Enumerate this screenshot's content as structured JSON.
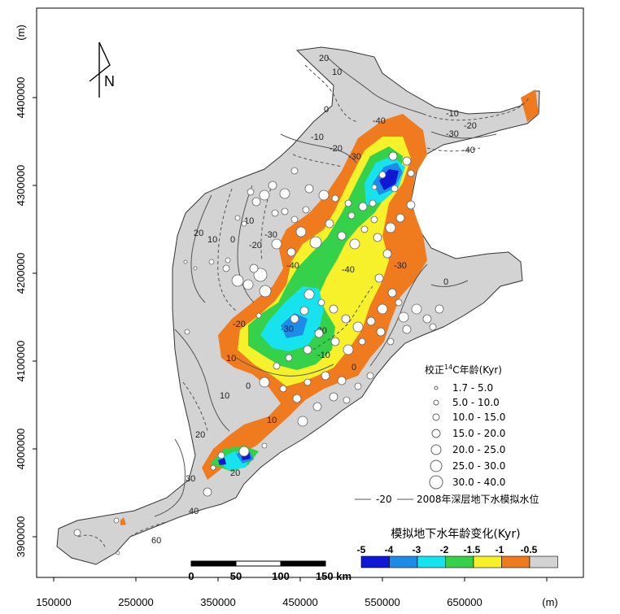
{
  "colors": {
    "background_region": "#d6d6d6",
    "orange": "#f07a1e",
    "yellow": "#f6f12a",
    "green": "#35d14a",
    "cyan": "#17e3ee",
    "mid_blue": "#1d8be8",
    "dark_blue": "#1018d6",
    "gray": "#d3d3d3",
    "frame": "#000000",
    "contour": "#555555"
  },
  "axes": {
    "x_unit": "(m)",
    "y_unit": "(m)",
    "x_ticks": [
      "150000",
      "250000",
      "350000",
      "450000",
      "550000",
      "650000"
    ],
    "y_ticks": [
      "4400000",
      "4300000",
      "4200000",
      "4100000",
      "4000000",
      "3900000"
    ]
  },
  "north_arrow": {
    "label": "N",
    "icon": "north-arrow-icon"
  },
  "contour_labels": [
    "20",
    "10",
    "0",
    "-10",
    "-20",
    "-30",
    "-40",
    "40",
    "30",
    "60"
  ],
  "well_legend": {
    "title_prefix": "校正",
    "title_sup": "14",
    "title_suffix": "C年龄(Kyr)",
    "classes": [
      "1.7 - 5.0",
      "5.0 - 10.0",
      "10.0 - 15.0",
      "15.0 - 20.0",
      "20.0 - 25.0",
      "25.0 - 30.0",
      "30.0 - 40.0"
    ],
    "contour_sample": "-20",
    "contour_text": "2008年深层地下水模拟水位"
  },
  "colorbar": {
    "title": "模拟地下水年龄变化(Kyr)",
    "labels": [
      "-5",
      "-4",
      "-3",
      "-2",
      "-1.5",
      "-1",
      "-0.5"
    ],
    "colors": [
      "#1018d6",
      "#1d8be8",
      "#17e3ee",
      "#35d14a",
      "#f6f12a",
      "#f07a1e",
      "#d3d3d3"
    ]
  },
  "scalebar": {
    "labels": [
      "0",
      "50",
      "100",
      "150 km"
    ]
  }
}
